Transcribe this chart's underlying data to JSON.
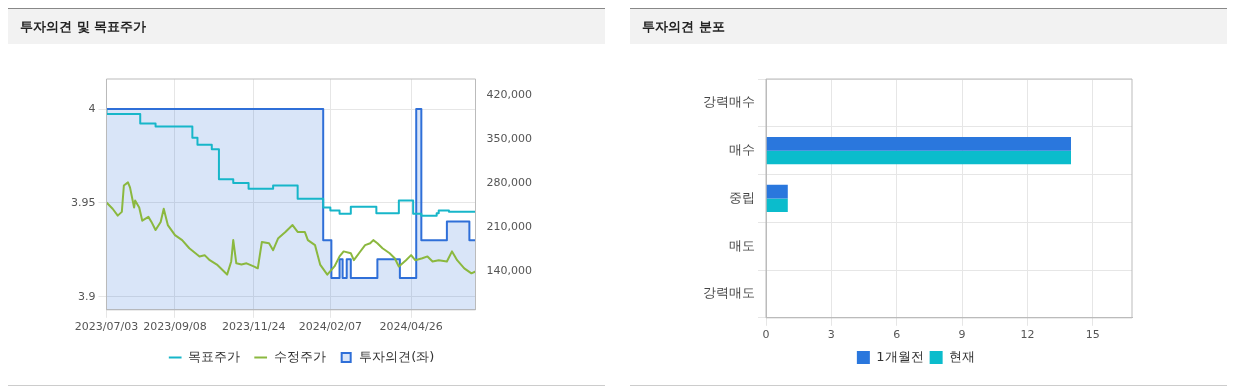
{
  "chart_data": [
    {
      "type": "line",
      "title": "투자의견 및 목표주가",
      "xlim": [
        "2023-07-03",
        "2024-06-28"
      ],
      "xticks": [
        {
          "value": "2023-07-03",
          "label": "2023/07/03"
        },
        {
          "value": "2023-09-08",
          "label": "2023/09/08"
        },
        {
          "value": "2023-11-24",
          "label": "2023/11/24"
        },
        {
          "value": "2024-02-07",
          "label": "2024/02/07"
        },
        {
          "value": "2024-04-26",
          "label": "2024/04/26"
        }
      ],
      "ylim": [
        3.893,
        4.016
      ],
      "yticks": [
        3.9,
        3.95,
        4
      ],
      "y2lim": [
        77900,
        445800
      ],
      "y2ticks": [
        {
          "value": 140000,
          "label": "140,000"
        },
        {
          "value": 210000,
          "label": "210,000"
        },
        {
          "value": 280000,
          "label": "280,000"
        },
        {
          "value": 350000,
          "label": "350,000"
        },
        {
          "value": 420000,
          "label": "420,000"
        }
      ],
      "grid": true,
      "legend": "bottom",
      "marker": "none",
      "series": [
        {
          "name": "투자의견(좌)",
          "type": "area",
          "color": "#2f6fd8",
          "x": [
            "2023-07-03",
            "2024-01-31",
            "2024-01-31",
            "2024-02-08",
            "2024-02-08",
            "2024-02-16",
            "2024-02-16",
            "2024-02-19",
            "2024-02-19",
            "2024-02-23",
            "2024-02-23",
            "2024-02-27",
            "2024-02-27",
            "2024-03-24",
            "2024-03-24",
            "2024-04-15",
            "2024-04-15",
            "2024-05-01",
            "2024-05-01",
            "2024-05-06",
            "2024-05-06",
            "2024-05-31",
            "2024-05-31",
            "2024-06-22",
            "2024-06-22",
            "2024-06-28"
          ],
          "values": [
            4,
            4,
            3.93,
            3.93,
            3.91,
            3.91,
            3.92,
            3.92,
            3.91,
            3.91,
            3.92,
            3.92,
            3.91,
            3.91,
            3.92,
            3.92,
            3.91,
            3.91,
            4,
            4,
            3.93,
            3.93,
            3.94,
            3.94,
            3.93,
            3.93
          ]
        },
        {
          "name": "목표주가",
          "type": "step",
          "axis": "y2",
          "color": "#17b6c9",
          "x": [
            "2023-07-03",
            "2023-08-05",
            "2023-08-20",
            "2023-09-25",
            "2023-09-30",
            "2023-10-14",
            "2023-10-21",
            "2023-11-04",
            "2023-11-19",
            "2023-12-13",
            "2024-01-06",
            "2024-01-31",
            "2024-02-07",
            "2024-02-16",
            "2024-02-27",
            "2024-03-23",
            "2024-04-14",
            "2024-04-28",
            "2024-05-06",
            "2024-05-21",
            "2024-05-23",
            "2024-06-02",
            "2024-06-21",
            "2024-06-28"
          ],
          "values": [
            397000,
            390000,
            375000,
            370000,
            352000,
            341000,
            334000,
            286000,
            280000,
            271000,
            276000,
            255000,
            241000,
            236000,
            231000,
            242000,
            232000,
            252000,
            231000,
            228000,
            232000,
            236000,
            234000,
            234000
          ]
        },
        {
          "name": "수정주가",
          "type": "line",
          "axis": "y2",
          "color": "#8bb83f",
          "x": [
            "2023-07-03",
            "2023-07-09",
            "2023-07-14",
            "2023-07-18",
            "2023-07-20",
            "2023-07-24",
            "2023-07-26",
            "2023-07-30",
            "2023-07-31",
            "2023-08-04",
            "2023-08-07",
            "2023-08-13",
            "2023-08-16",
            "2023-08-20",
            "2023-08-25",
            "2023-08-28",
            "2023-09-01",
            "2023-09-08",
            "2023-09-15",
            "2023-09-22",
            "2023-10-02",
            "2023-10-07",
            "2023-10-12",
            "2023-10-19",
            "2023-10-26",
            "2023-10-29",
            "2023-11-02",
            "2023-11-04",
            "2023-11-07",
            "2023-11-12",
            "2023-11-17",
            "2023-11-24",
            "2023-11-28",
            "2023-12-02",
            "2023-12-09",
            "2023-12-13",
            "2023-12-18",
            "2023-12-25",
            "2024-01-01",
            "2024-01-06",
            "2024-01-13",
            "2024-01-16",
            "2024-01-23",
            "2024-01-28",
            "2024-02-04",
            "2024-02-11",
            "2024-02-16",
            "2024-02-20",
            "2024-02-27",
            "2024-03-01",
            "2024-03-06",
            "2024-03-12",
            "2024-03-17",
            "2024-03-20",
            "2024-03-24",
            "2024-03-29",
            "2024-04-05",
            "2024-04-10",
            "2024-04-14",
            "2024-04-21",
            "2024-04-26",
            "2024-04-30",
            "2024-05-07",
            "2024-05-12",
            "2024-05-17",
            "2024-05-23",
            "2024-05-31",
            "2024-06-05",
            "2024-06-10",
            "2024-06-17",
            "2024-06-24",
            "2024-06-28"
          ],
          "values": [
            249000,
            239000,
            228000,
            234000,
            276000,
            281000,
            273000,
            241000,
            252000,
            241000,
            220000,
            226000,
            218000,
            205000,
            218000,
            239000,
            213000,
            197000,
            189000,
            176000,
            163000,
            165000,
            157000,
            150000,
            139000,
            134000,
            155000,
            189000,
            152000,
            150000,
            152000,
            147000,
            144000,
            186000,
            184000,
            173000,
            192000,
            202000,
            213000,
            202000,
            202000,
            189000,
            181000,
            150000,
            134000,
            147000,
            163000,
            171000,
            168000,
            157000,
            168000,
            181000,
            184000,
            189000,
            184000,
            176000,
            168000,
            160000,
            147000,
            157000,
            165000,
            157000,
            160000,
            163000,
            155000,
            157000,
            155000,
            171000,
            157000,
            144000,
            136000,
            139000
          ]
        }
      ]
    },
    {
      "type": "bar",
      "title": "투자의견 분포",
      "orientation": "horizontal",
      "categories": [
        "강력매수",
        "매수",
        "중립",
        "매도",
        "강력매도"
      ],
      "xlim": [
        0,
        16.8
      ],
      "xticks": [
        0,
        3,
        6,
        9,
        12,
        15
      ],
      "grid": true,
      "legend": "bottom",
      "series": [
        {
          "name": "1개월전",
          "color": "#2a77dd",
          "values": [
            0,
            14,
            1,
            0,
            0
          ]
        },
        {
          "name": "현재",
          "color": "#0bbccc",
          "values": [
            0,
            14,
            1,
            0,
            0
          ]
        }
      ]
    }
  ]
}
